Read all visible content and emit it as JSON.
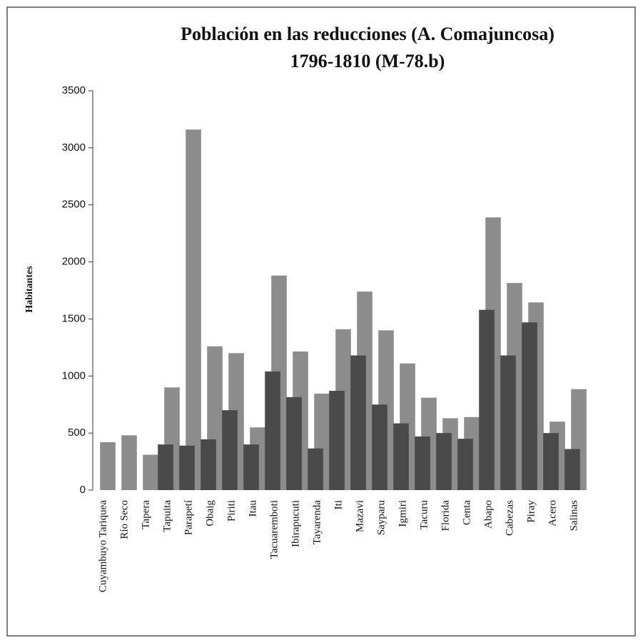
{
  "chart_data": {
    "type": "bar",
    "title": "Población en las reducciones  (A. Comajuncosa)",
    "subtitle": "1796-1810 (M-78.b)",
    "y_label": "Habitantes",
    "categories": [
      "Cuyambuyo Tariquea",
      "Río Seco",
      "Tapera",
      "Tapuita",
      "Parapetí",
      "Obaig",
      "Piriti",
      "Itau",
      "Tacuaremboti",
      "Ibirapucuti",
      "Tayarenda",
      "Iti",
      "Mazavi",
      "Sayparu",
      "Igmiri",
      "Tacuru",
      "Florida",
      "Centa",
      "Abapo",
      "Cabezas",
      "Piray",
      "Acero",
      "Salinas"
    ],
    "series": [
      {
        "color": "#8c8c8c",
        "values": [
          420,
          480,
          310,
          900,
          3160,
          1260,
          1200,
          550,
          1880,
          1215,
          845,
          1410,
          1740,
          1400,
          1110,
          810,
          630,
          640,
          2390,
          1815,
          1645,
          600,
          885
        ]
      },
      {
        "color": "#4a4a4a",
        "values": [
          0,
          0,
          0,
          400,
          390,
          445,
          700,
          400,
          1040,
          815,
          365,
          870,
          1180,
          750,
          585,
          470,
          500,
          450,
          1580,
          1180,
          1470,
          500,
          360
        ]
      }
    ],
    "ylim": [
      0,
      3500
    ],
    "yticks": [
      0,
      500,
      1000,
      1500,
      2000,
      2500,
      3000,
      3500
    ]
  }
}
